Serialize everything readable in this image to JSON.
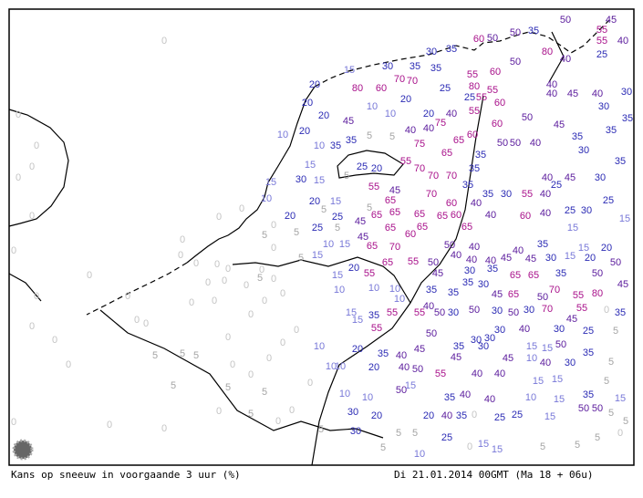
{
  "footer": {
    "left": "Kans op sneeuw in voorgaande 3 uur (%)",
    "right": "Di 21.01.2014 00GMT (Ma 18 + 06u)"
  },
  "grid_values": [
    50,
    45,
    55,
    60,
    50,
    50,
    35,
    80,
    55,
    40,
    30,
    35,
    40,
    25,
    50,
    35,
    35,
    55,
    60,
    30,
    15,
    70,
    70,
    80,
    60,
    20,
    25,
    80,
    55,
    40,
    40,
    45,
    40,
    30,
    20,
    25,
    55,
    60,
    20,
    10,
    10,
    20,
    40,
    55,
    50,
    45,
    30,
    35,
    20,
    45,
    40,
    40,
    75,
    60,
    60,
    35,
    10,
    20,
    35,
    75,
    65,
    50,
    50,
    40,
    35,
    30,
    10,
    35,
    65,
    35,
    35,
    15,
    25,
    20,
    55,
    70,
    70,
    70,
    30,
    15,
    15,
    35,
    40,
    45,
    30,
    55,
    45,
    70,
    35,
    35,
    30,
    55,
    40,
    25,
    10,
    20,
    15,
    65,
    60,
    40,
    25,
    20,
    25,
    45,
    65,
    65,
    65,
    65,
    60,
    40,
    60,
    40,
    25,
    30,
    15,
    25,
    45,
    65,
    65,
    65,
    15,
    60,
    10,
    15,
    65,
    70,
    50,
    40,
    40,
    35,
    15,
    20,
    15,
    40,
    40,
    40,
    45,
    45,
    30,
    15,
    20,
    20,
    65,
    55,
    50,
    45,
    30,
    35,
    65,
    65,
    35,
    50,
    50,
    15,
    55,
    10,
    10,
    10,
    35,
    35,
    35,
    30,
    45,
    65,
    50,
    70,
    55,
    80,
    45,
    10,
    40,
    50,
    30,
    50,
    30,
    70,
    55,
    35,
    15,
    35,
    55,
    55,
    50,
    30,
    45,
    15,
    55,
    50,
    30,
    40,
    30,
    25,
    10,
    20,
    35,
    40,
    45,
    35,
    30,
    15,
    15,
    50,
    35,
    45,
    30,
    30,
    45,
    10,
    40,
    30,
    10,
    10,
    20,
    40,
    50,
    55,
    40,
    40,
    15,
    15,
    50,
    15,
    10,
    10,
    35,
    40,
    40,
    10,
    15,
    35,
    15,
    30,
    20,
    20,
    40,
    35,
    25,
    25,
    15,
    50,
    50,
    30,
    5,
    5,
    25,
    15,
    15,
    10,
    0,
    0,
    0,
    0,
    0,
    0,
    0,
    0,
    0,
    0,
    0,
    0,
    0,
    0,
    0,
    5,
    0,
    0,
    0,
    0,
    0,
    0,
    0,
    0,
    0,
    0,
    0,
    0,
    0,
    0,
    0,
    0,
    0,
    0,
    0,
    0,
    0,
    0,
    0,
    0,
    0,
    5,
    0,
    0,
    0,
    5,
    5,
    5,
    5,
    5,
    5,
    5,
    5,
    0,
    5,
    5,
    5,
    5,
    5,
    5,
    0,
    0,
    5,
    5,
    0,
    5,
    0,
    5,
    5,
    5,
    0,
    5,
    5,
    0,
    5,
    5,
    5,
    0
  ]
}
